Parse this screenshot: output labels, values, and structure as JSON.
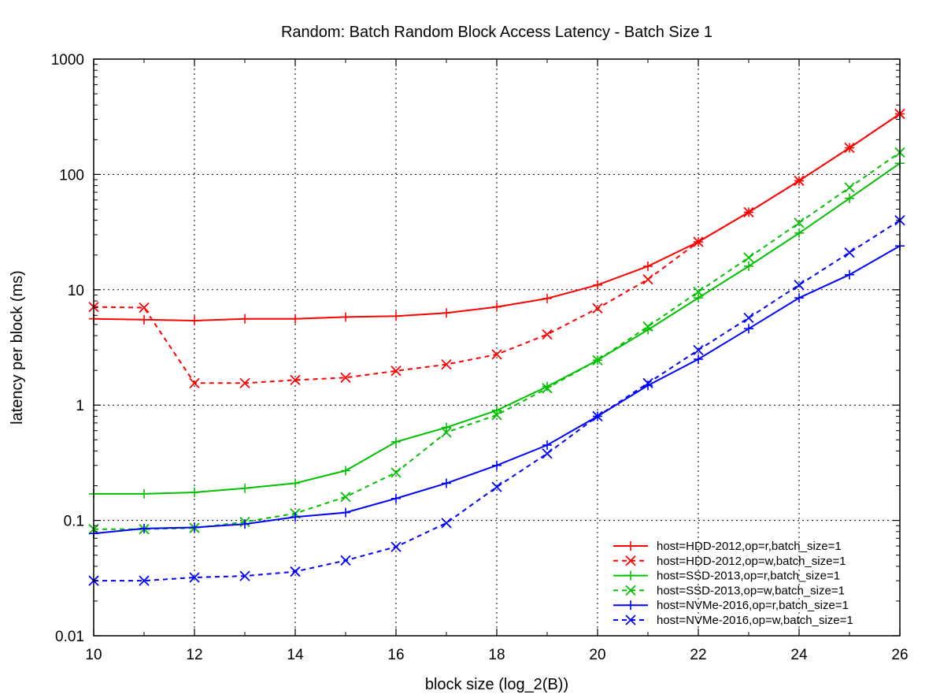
{
  "chart_data": {
    "type": "line",
    "title": "Random: Batch Random Block Access Latency - Batch Size 1",
    "xlabel": "block size (log_2(B))",
    "ylabel": "latency per block (ms)",
    "xlim": [
      10,
      26
    ],
    "ylim": [
      0.01,
      1000
    ],
    "yscale": "log",
    "grid": true,
    "legend_position": "bottom-right",
    "x_ticks": [
      10,
      12,
      14,
      16,
      18,
      20,
      22,
      24,
      26
    ],
    "x_tick_labels": [
      "10",
      "12",
      "14",
      "16",
      "18",
      "20",
      "22",
      "24",
      "26"
    ],
    "y_ticks": [
      0.01,
      0.1,
      1,
      10,
      100,
      1000
    ],
    "y_tick_labels": [
      "0.01",
      "0.1",
      "1",
      "10",
      "100",
      "1000"
    ],
    "x": [
      10,
      11,
      12,
      13,
      14,
      15,
      16,
      17,
      18,
      19,
      20,
      21,
      22,
      23,
      24,
      25,
      26
    ],
    "series": [
      {
        "name": "host=HDD-2012,op=r,batch_size=1",
        "color": "#ff0000",
        "dash": "solid",
        "marker": "plus",
        "values": [
          5.6,
          5.5,
          5.4,
          5.6,
          5.6,
          5.8,
          5.9,
          6.3,
          7.1,
          8.4,
          11,
          16,
          26,
          47,
          88,
          170,
          335
        ]
      },
      {
        "name": "host=HDD-2012,op=w,batch_size=1",
        "color": "#ff0000",
        "dash": "dashed",
        "marker": "cross",
        "values": [
          7.1,
          7.0,
          1.55,
          1.55,
          1.65,
          1.73,
          1.98,
          2.25,
          2.75,
          4.1,
          6.9,
          12.3,
          26,
          47,
          88,
          170,
          335
        ]
      },
      {
        "name": "host=SSD-2013,op=r,batch_size=1",
        "color": "#00c000",
        "dash": "solid",
        "marker": "plus",
        "values": [
          0.17,
          0.17,
          0.175,
          0.19,
          0.21,
          0.27,
          0.48,
          0.64,
          0.9,
          1.45,
          2.45,
          4.5,
          8.5,
          16,
          31,
          62,
          125
        ]
      },
      {
        "name": "host=SSD-2013,op=w,batch_size=1",
        "color": "#00c000",
        "dash": "dashed",
        "marker": "cross",
        "values": [
          0.084,
          0.084,
          0.086,
          0.097,
          0.115,
          0.16,
          0.26,
          0.58,
          0.82,
          1.4,
          2.45,
          4.8,
          9.6,
          19,
          38,
          77,
          155
        ]
      },
      {
        "name": "host=NVMe-2016,op=r,batch_size=1",
        "color": "#0000ff",
        "dash": "solid",
        "marker": "plus",
        "values": [
          0.077,
          0.085,
          0.087,
          0.093,
          0.107,
          0.117,
          0.155,
          0.21,
          0.3,
          0.45,
          0.8,
          1.48,
          2.5,
          4.6,
          8.5,
          13.5,
          24
        ]
      },
      {
        "name": "host=NVMe-2016,op=w,batch_size=1",
        "color": "#0000ff",
        "dash": "dashed",
        "marker": "cross",
        "values": [
          0.03,
          0.03,
          0.032,
          0.033,
          0.036,
          0.045,
          0.059,
          0.095,
          0.195,
          0.38,
          0.8,
          1.55,
          3.0,
          5.7,
          11,
          21,
          40
        ]
      }
    ]
  }
}
